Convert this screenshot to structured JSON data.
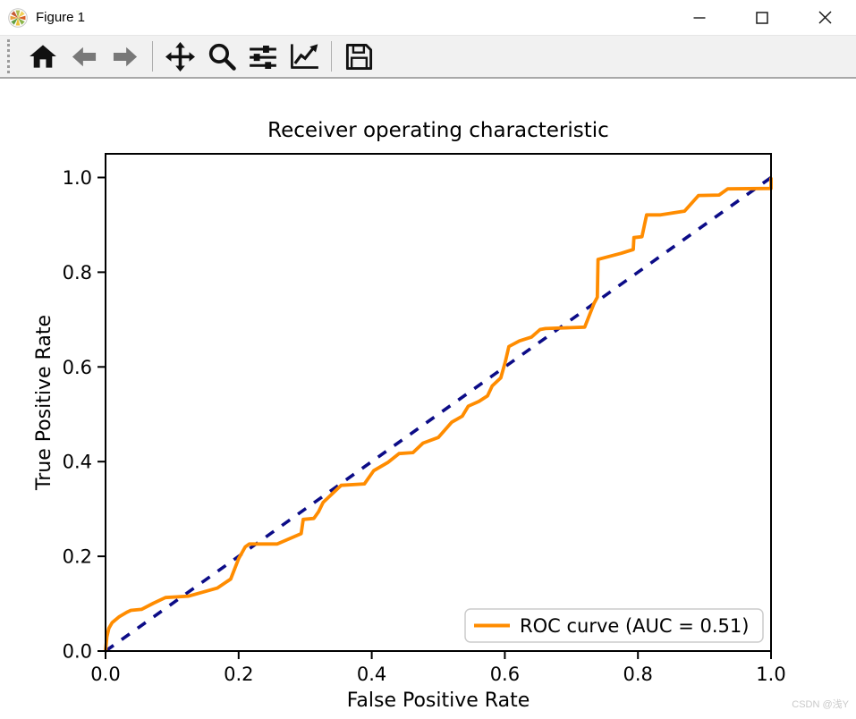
{
  "window": {
    "title": "Figure 1",
    "icon": "matplotlib-logo-icon",
    "controls": {
      "minimize": "minimize",
      "maximize": "maximize",
      "close": "close"
    }
  },
  "toolbar": {
    "icons": [
      "home-icon",
      "back-icon",
      "forward-icon",
      "pan-icon",
      "zoom-icon",
      "subplots-icon",
      "customize-icon",
      "save-icon"
    ],
    "disabled_icons": [
      "back-icon",
      "forward-icon"
    ]
  },
  "chart_data": {
    "type": "line",
    "title": "Receiver operating characteristic",
    "xlabel": "False Positive Rate",
    "ylabel": "True Positive Rate",
    "xlim": [
      0.0,
      1.0
    ],
    "ylim": [
      0.0,
      1.05
    ],
    "xticks": [
      0.0,
      0.2,
      0.4,
      0.6,
      0.8,
      1.0
    ],
    "yticks": [
      0.0,
      0.2,
      0.4,
      0.6,
      0.8,
      1.0
    ],
    "xtick_labels": [
      "0.0",
      "0.2",
      "0.4",
      "0.6",
      "0.8",
      "1.0"
    ],
    "ytick_labels": [
      "0.0",
      "0.2",
      "0.4",
      "0.6",
      "0.8",
      "1.0"
    ],
    "grid": false,
    "spine_color": "#000000",
    "legend": {
      "position": "lower right",
      "border_color": "#cccccc",
      "entries": [
        {
          "label": "ROC curve (AUC = 0.51)",
          "color": "#ff8c00",
          "style": "solid"
        }
      ]
    },
    "series": [
      {
        "name": "chance-diagonal",
        "color": "#0c0c87",
        "style": "dashed",
        "linewidth": 3.6,
        "points": [
          [
            0.0,
            0.0
          ],
          [
            1.0,
            1.0
          ]
        ]
      },
      {
        "name": "ROC curve (AUC = 0.51)",
        "color": "#ff8c00",
        "style": "solid",
        "linewidth": 3.8,
        "points": [
          [
            0.0,
            0.0
          ],
          [
            0.002,
            0.03
          ],
          [
            0.005,
            0.048
          ],
          [
            0.01,
            0.06
          ],
          [
            0.02,
            0.072
          ],
          [
            0.032,
            0.082
          ],
          [
            0.038,
            0.086
          ],
          [
            0.054,
            0.088
          ],
          [
            0.072,
            0.101
          ],
          [
            0.09,
            0.113
          ],
          [
            0.125,
            0.116
          ],
          [
            0.168,
            0.133
          ],
          [
            0.188,
            0.152
          ],
          [
            0.2,
            0.195
          ],
          [
            0.21,
            0.22
          ],
          [
            0.216,
            0.226
          ],
          [
            0.258,
            0.226
          ],
          [
            0.294,
            0.248
          ],
          [
            0.297,
            0.278
          ],
          [
            0.313,
            0.28
          ],
          [
            0.32,
            0.294
          ],
          [
            0.327,
            0.314
          ],
          [
            0.354,
            0.35
          ],
          [
            0.389,
            0.353
          ],
          [
            0.403,
            0.381
          ],
          [
            0.424,
            0.398
          ],
          [
            0.441,
            0.417
          ],
          [
            0.462,
            0.419
          ],
          [
            0.477,
            0.439
          ],
          [
            0.5,
            0.451
          ],
          [
            0.52,
            0.483
          ],
          [
            0.536,
            0.496
          ],
          [
            0.545,
            0.517
          ],
          [
            0.561,
            0.527
          ],
          [
            0.574,
            0.539
          ],
          [
            0.581,
            0.56
          ],
          [
            0.594,
            0.577
          ],
          [
            0.601,
            0.612
          ],
          [
            0.606,
            0.643
          ],
          [
            0.622,
            0.655
          ],
          [
            0.64,
            0.663
          ],
          [
            0.653,
            0.679
          ],
          [
            0.661,
            0.681
          ],
          [
            0.72,
            0.684
          ],
          [
            0.734,
            0.734
          ],
          [
            0.739,
            0.747
          ],
          [
            0.74,
            0.827
          ],
          [
            0.775,
            0.84
          ],
          [
            0.793,
            0.848
          ],
          [
            0.794,
            0.873
          ],
          [
            0.806,
            0.875
          ],
          [
            0.813,
            0.921
          ],
          [
            0.834,
            0.921
          ],
          [
            0.87,
            0.929
          ],
          [
            0.891,
            0.962
          ],
          [
            0.922,
            0.963
          ],
          [
            0.935,
            0.976
          ],
          [
            1.0,
            0.977
          ],
          [
            1.0,
            1.0
          ]
        ]
      }
    ]
  },
  "watermark": "CSDN @浅Y"
}
